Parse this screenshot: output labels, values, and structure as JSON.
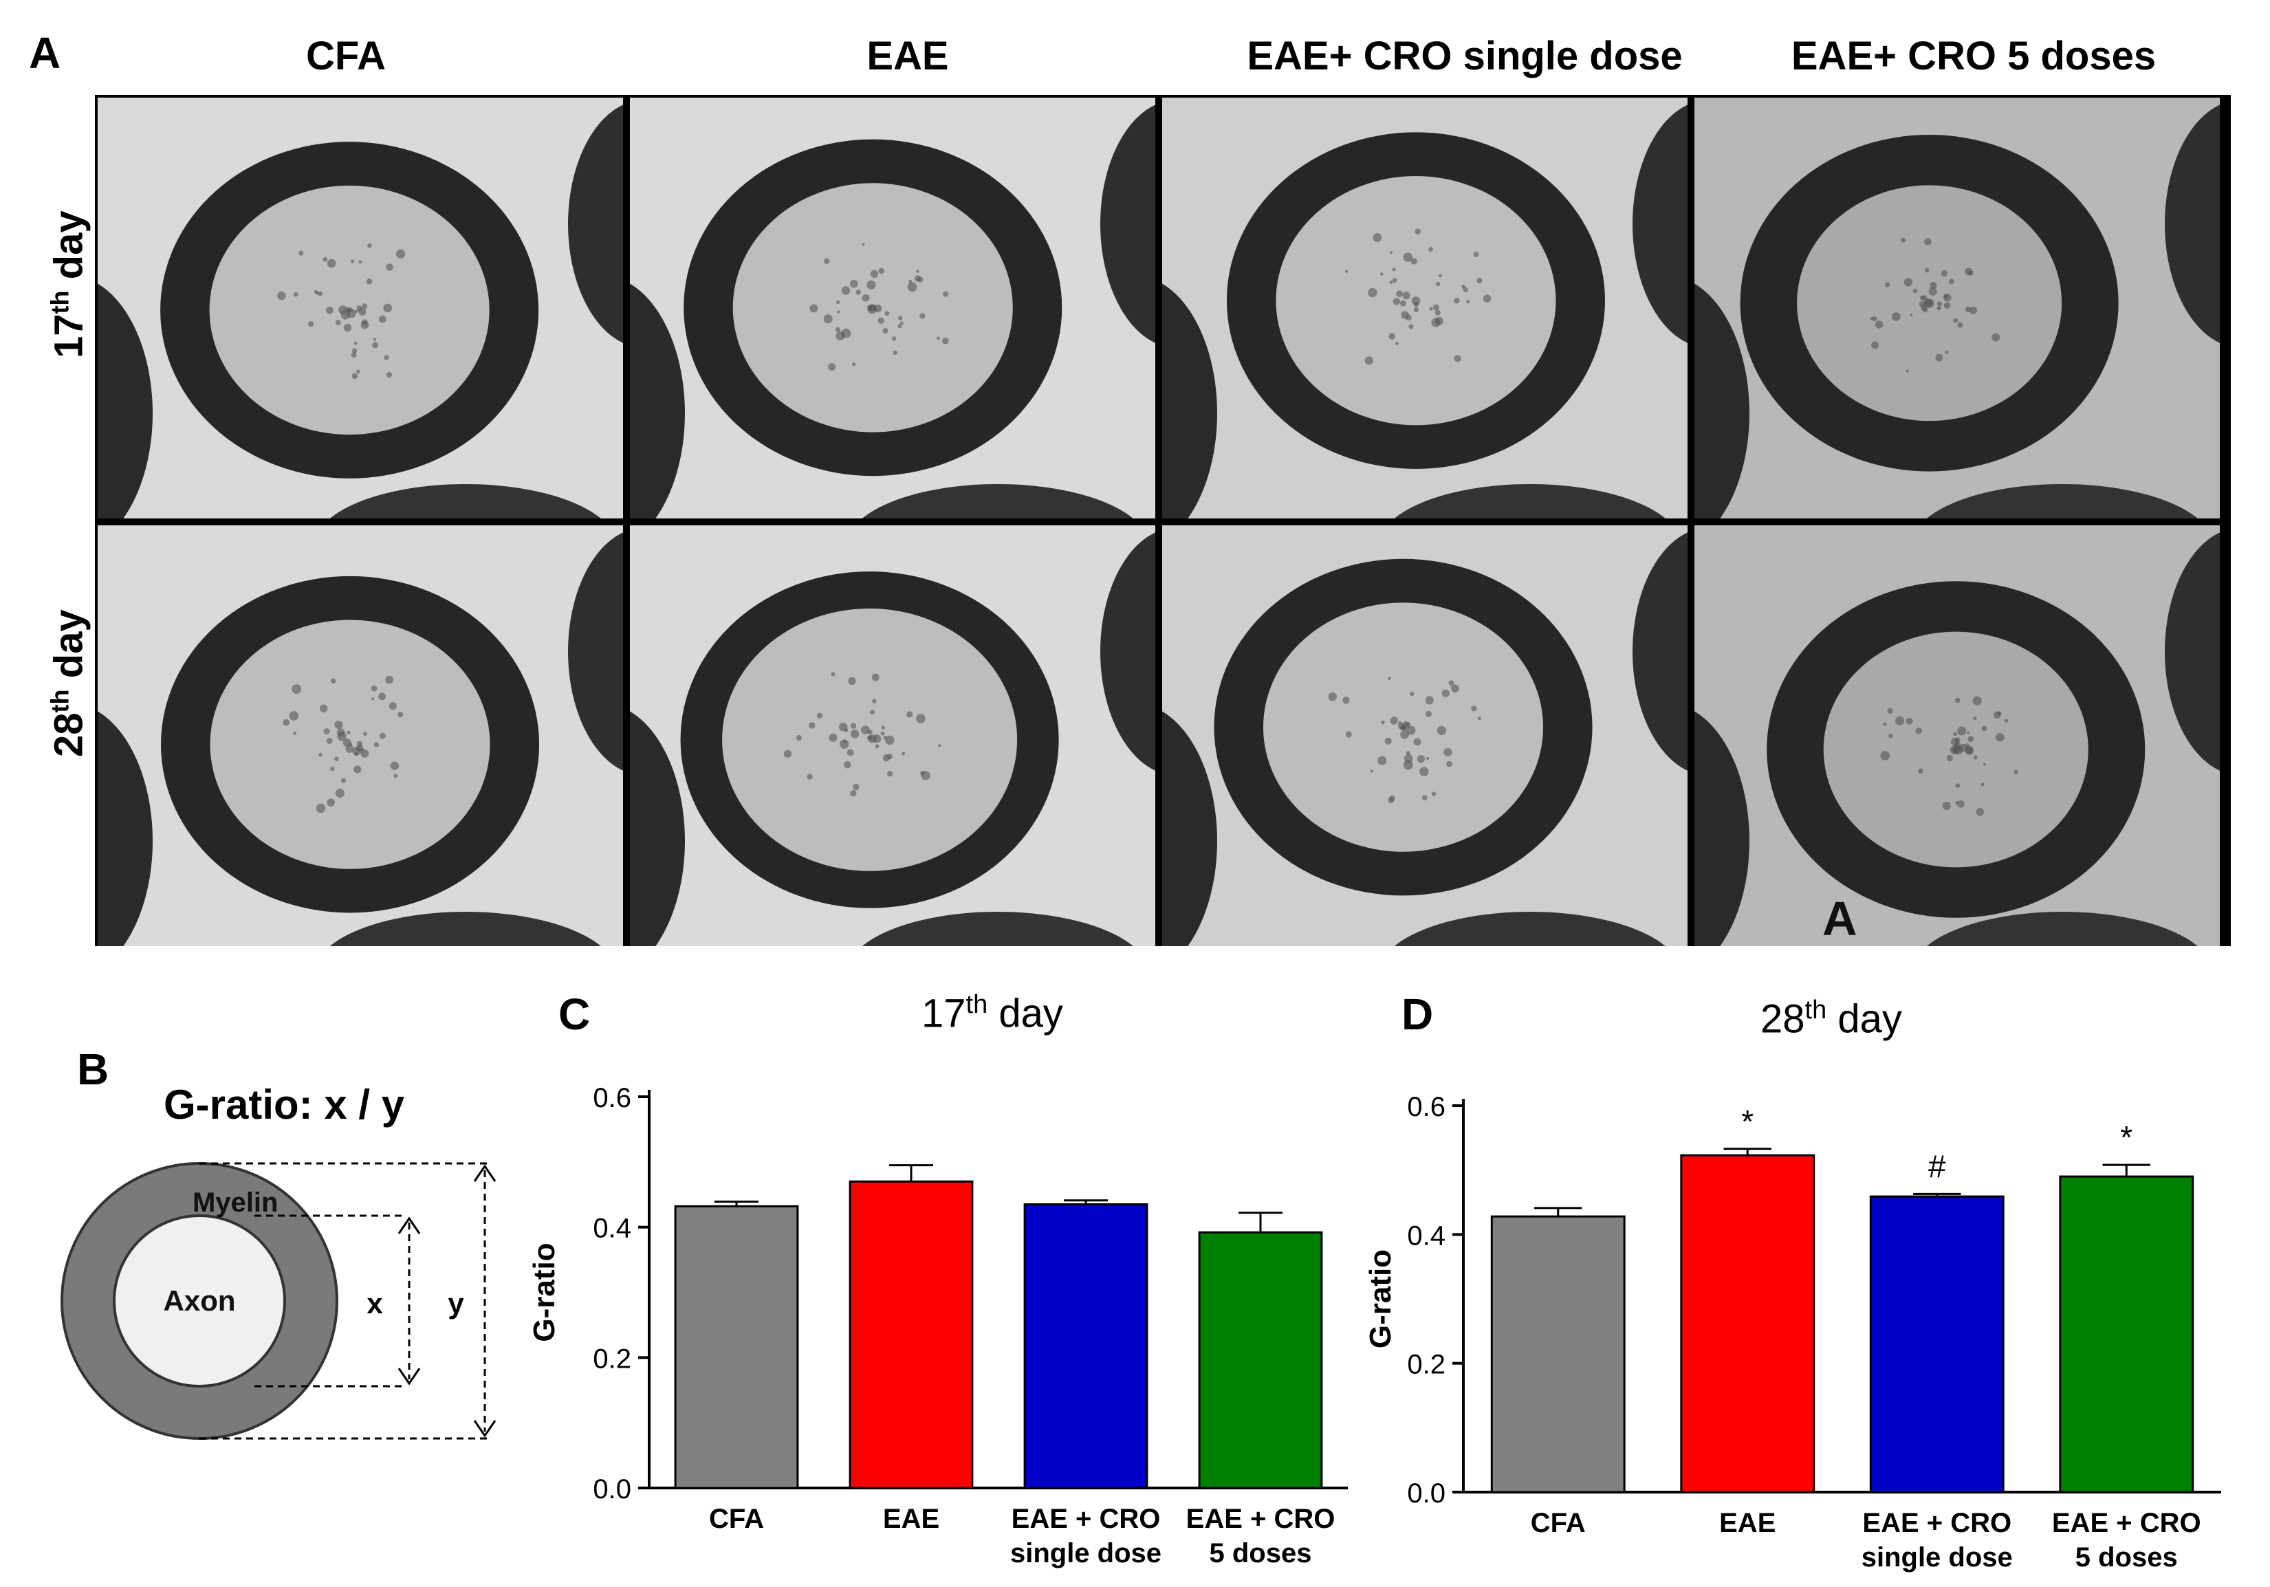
{
  "panels": {
    "a": {
      "letter": "A"
    },
    "b": {
      "letter": "B"
    },
    "c": {
      "letter": "C"
    },
    "d": {
      "letter": "D"
    }
  },
  "micrographs": {
    "columns": [
      "CFA",
      "EAE",
      "EAE+ CRO single dose",
      "EAE+ CRO 5 doses"
    ],
    "rows": [
      {
        "ordinal": "17",
        "suffix": "th",
        "word": "day"
      },
      {
        "ordinal": "28",
        "suffix": "th",
        "word": "day"
      }
    ],
    "corner_mark": "A"
  },
  "diagram": {
    "title": "G-ratio: x / y",
    "outer_label": "Myelin",
    "inner_label": "Axon",
    "inner_dim": "x",
    "outer_dim": "y",
    "colors": {
      "myelin": "#7a7a7a",
      "axon": "#f0f0f0"
    }
  },
  "chart_data": [
    {
      "type": "bar",
      "title_number": "17",
      "title_suffix": "th",
      "title_word": "day",
      "ylabel": "G-ratio",
      "ylim": [
        0,
        0.6
      ],
      "yticks": [
        "0.0",
        "0.2",
        "0.4",
        "0.6"
      ],
      "categories": [
        {
          "line1": "CFA",
          "line2": ""
        },
        {
          "line1": "EAE",
          "line2": ""
        },
        {
          "line1": "EAE + CRO",
          "line2": "single dose"
        },
        {
          "line1": "EAE + CRO",
          "line2": "5 doses"
        }
      ],
      "values": [
        0.432,
        0.47,
        0.435,
        0.392
      ],
      "errors": [
        0.007,
        0.025,
        0.006,
        0.03
      ],
      "annotations": [
        "",
        "",
        "",
        ""
      ],
      "colors": [
        "#808080",
        "#ff0000",
        "#0000c8",
        "#008000"
      ]
    },
    {
      "type": "bar",
      "title_number": "28",
      "title_suffix": "th",
      "title_word": "day",
      "ylabel": "G-ratio",
      "ylim": [
        0,
        0.6
      ],
      "yticks": [
        "0.0",
        "0.2",
        "0.4",
        "0.6"
      ],
      "categories": [
        {
          "line1": "CFA",
          "line2": ""
        },
        {
          "line1": "EAE",
          "line2": ""
        },
        {
          "line1": "EAE + CRO",
          "line2": "single dose"
        },
        {
          "line1": "EAE + CRO",
          "line2": "5 doses"
        }
      ],
      "values": [
        0.428,
        0.523,
        0.459,
        0.49
      ],
      "errors": [
        0.013,
        0.01,
        0.004,
        0.018
      ],
      "annotations": [
        "",
        "*",
        "#",
        "*"
      ],
      "colors": [
        "#808080",
        "#ff0000",
        "#0000c8",
        "#008000"
      ]
    }
  ]
}
